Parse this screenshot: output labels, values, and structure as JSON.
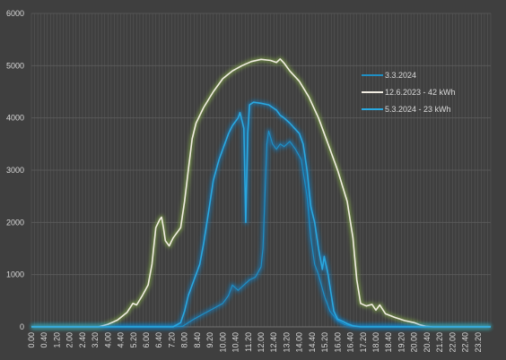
{
  "chart_data": {
    "type": "line",
    "title": "",
    "xlabel": "",
    "ylabel": "",
    "ylim": [
      0,
      6000
    ],
    "yticks": [
      "0",
      "1000",
      "2000",
      "3000",
      "4000",
      "5000",
      "6000"
    ],
    "xlim": [
      0,
      24
    ],
    "xticks": [
      "0.00",
      "0.40",
      "1.20",
      "2.00",
      "2.40",
      "3.20",
      "4.00",
      "4.40",
      "5.20",
      "6.00",
      "6.40",
      "7.20",
      "8.00",
      "8.40",
      "9.20",
      "10.00",
      "10.40",
      "11.20",
      "12.00",
      "12.40",
      "13.20",
      "14.00",
      "14.40",
      "15.20",
      "16.00",
      "16.40",
      "17.20",
      "18.00",
      "18.40",
      "19.20",
      "20.00",
      "20.40",
      "21.20",
      "22.00",
      "22.40",
      "23.20"
    ],
    "grid": true,
    "legend_position": "top-right",
    "colors": {
      "background": "#3f3f3f",
      "grid": "#575757",
      "axis_text": "#d9d9d9"
    },
    "series": [
      {
        "name": "3.3.2024",
        "color": "#1f8fc4",
        "glow": "#0e86d4",
        "points": [
          [
            0,
            10
          ],
          [
            7.9,
            10
          ],
          [
            8.2,
            80
          ],
          [
            8.5,
            150
          ],
          [
            9.0,
            250
          ],
          [
            9.5,
            350
          ],
          [
            10.0,
            450
          ],
          [
            10.3,
            600
          ],
          [
            10.5,
            800
          ],
          [
            10.8,
            700
          ],
          [
            11.1,
            800
          ],
          [
            11.4,
            900
          ],
          [
            11.7,
            950
          ],
          [
            12.0,
            1150
          ],
          [
            12.1,
            1500
          ],
          [
            12.2,
            2500
          ],
          [
            12.3,
            3500
          ],
          [
            12.4,
            3750
          ],
          [
            12.6,
            3500
          ],
          [
            12.8,
            3400
          ],
          [
            13.0,
            3500
          ],
          [
            13.2,
            3450
          ],
          [
            13.5,
            3550
          ],
          [
            13.8,
            3400
          ],
          [
            14.1,
            3200
          ],
          [
            14.4,
            2500
          ],
          [
            14.6,
            1700
          ],
          [
            14.8,
            1200
          ],
          [
            15.0,
            1000
          ],
          [
            15.3,
            600
          ],
          [
            15.6,
            300
          ],
          [
            16.0,
            120
          ],
          [
            16.4,
            40
          ],
          [
            16.8,
            10
          ],
          [
            24,
            10
          ]
        ]
      },
      {
        "name": "12.6.2023 - 42 kWh",
        "color": "#f2ede3",
        "glow": "#8fbf45",
        "points": [
          [
            0,
            0
          ],
          [
            3.5,
            0
          ],
          [
            4.0,
            50
          ],
          [
            4.5,
            130
          ],
          [
            5.0,
            280
          ],
          [
            5.3,
            450
          ],
          [
            5.5,
            420
          ],
          [
            5.8,
            600
          ],
          [
            6.1,
            800
          ],
          [
            6.3,
            1200
          ],
          [
            6.5,
            1900
          ],
          [
            6.7,
            2050
          ],
          [
            6.8,
            2100
          ],
          [
            6.9,
            1900
          ],
          [
            7.0,
            1650
          ],
          [
            7.2,
            1550
          ],
          [
            7.4,
            1700
          ],
          [
            7.8,
            1900
          ],
          [
            8.0,
            2400
          ],
          [
            8.2,
            3000
          ],
          [
            8.4,
            3600
          ],
          [
            8.6,
            3900
          ],
          [
            9.0,
            4200
          ],
          [
            9.5,
            4500
          ],
          [
            10.0,
            4750
          ],
          [
            10.5,
            4900
          ],
          [
            11.0,
            5000
          ],
          [
            11.5,
            5080
          ],
          [
            12.0,
            5120
          ],
          [
            12.5,
            5100
          ],
          [
            12.8,
            5060
          ],
          [
            13.0,
            5130
          ],
          [
            13.2,
            5050
          ],
          [
            13.5,
            4900
          ],
          [
            14.0,
            4700
          ],
          [
            14.5,
            4400
          ],
          [
            15.0,
            4000
          ],
          [
            15.5,
            3500
          ],
          [
            16.0,
            3000
          ],
          [
            16.5,
            2400
          ],
          [
            16.8,
            1700
          ],
          [
            17.0,
            900
          ],
          [
            17.2,
            450
          ],
          [
            17.5,
            400
          ],
          [
            17.8,
            430
          ],
          [
            18.0,
            320
          ],
          [
            18.2,
            420
          ],
          [
            18.5,
            250
          ],
          [
            19.0,
            180
          ],
          [
            19.5,
            120
          ],
          [
            20.0,
            80
          ],
          [
            20.3,
            40
          ],
          [
            20.6,
            10
          ],
          [
            21,
            0
          ],
          [
            24,
            0
          ]
        ]
      },
      {
        "name": "5.3.2024 - 23 kWh",
        "color": "#29a8e0",
        "glow": "#0e86d4",
        "points": [
          [
            0,
            0
          ],
          [
            7.4,
            0
          ],
          [
            7.8,
            80
          ],
          [
            8.0,
            300
          ],
          [
            8.2,
            600
          ],
          [
            8.5,
            900
          ],
          [
            8.8,
            1200
          ],
          [
            9.0,
            1600
          ],
          [
            9.3,
            2300
          ],
          [
            9.5,
            2800
          ],
          [
            9.8,
            3200
          ],
          [
            10.0,
            3400
          ],
          [
            10.3,
            3700
          ],
          [
            10.5,
            3850
          ],
          [
            10.8,
            4000
          ],
          [
            10.9,
            4100
          ],
          [
            11.0,
            3950
          ],
          [
            11.1,
            3800
          ],
          [
            11.2,
            2000
          ],
          [
            11.3,
            3700
          ],
          [
            11.4,
            4250
          ],
          [
            11.6,
            4300
          ],
          [
            12.0,
            4280
          ],
          [
            12.4,
            4250
          ],
          [
            12.6,
            4200
          ],
          [
            12.8,
            4150
          ],
          [
            13.0,
            4050
          ],
          [
            13.2,
            4000
          ],
          [
            13.5,
            3900
          ],
          [
            14.0,
            3700
          ],
          [
            14.2,
            3500
          ],
          [
            14.4,
            3000
          ],
          [
            14.6,
            2300
          ],
          [
            14.8,
            2000
          ],
          [
            15.0,
            1500
          ],
          [
            15.2,
            1100
          ],
          [
            15.3,
            1350
          ],
          [
            15.5,
            1000
          ],
          [
            15.8,
            300
          ],
          [
            16.0,
            150
          ],
          [
            16.3,
            100
          ],
          [
            16.5,
            60
          ],
          [
            16.8,
            20
          ],
          [
            17.2,
            0
          ],
          [
            24,
            0
          ]
        ]
      }
    ]
  }
}
